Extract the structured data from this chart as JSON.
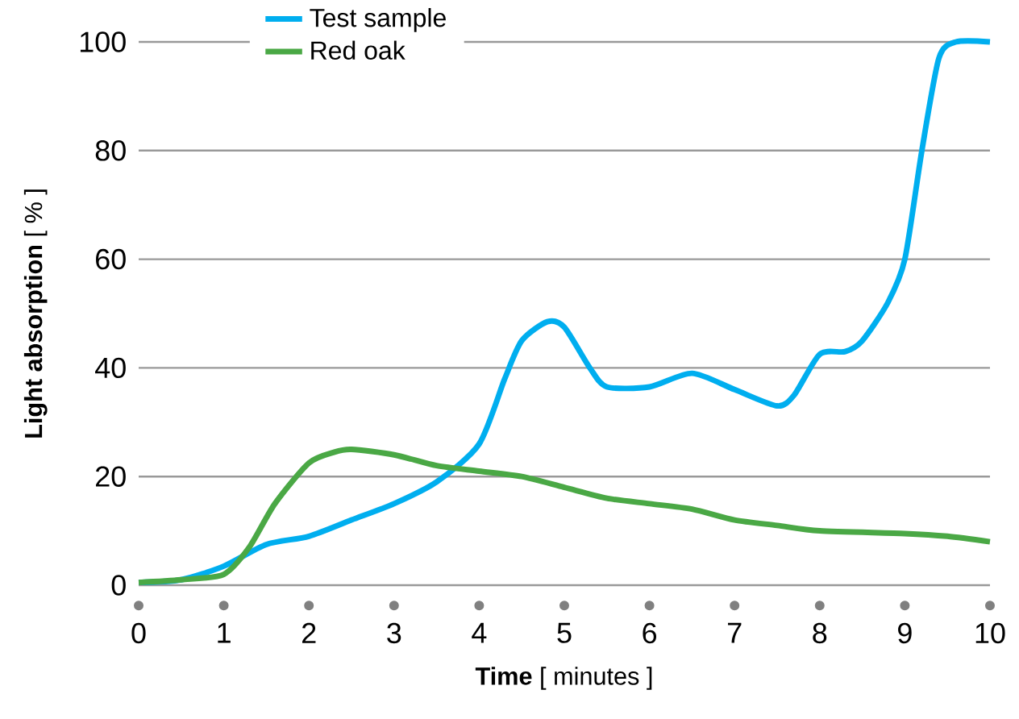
{
  "chart_data": {
    "type": "line",
    "xlabel": "**Time** [ minutes ]",
    "ylabel": "**Light absorption** [ % ]",
    "xlim": [
      0,
      10
    ],
    "ylim": [
      0,
      100
    ],
    "xticks": [
      0,
      1,
      2,
      3,
      4,
      5,
      6,
      7,
      8,
      9,
      10
    ],
    "yticks": [
      0,
      20,
      40,
      60,
      80,
      100
    ],
    "grid": "y",
    "legend": "top left",
    "marker": "none",
    "series": [
      {
        "name": "Test sample",
        "color": "#00aeef",
        "x": [
          0,
          0.5,
          1,
          1.5,
          2,
          2.5,
          3,
          3.5,
          4,
          4.3,
          4.5,
          4.8,
          5,
          5.3,
          5.5,
          6,
          6.5,
          7,
          7.5,
          7.7,
          8,
          8.3,
          8.5,
          8.8,
          9,
          9.2,
          9.4,
          9.6,
          10
        ],
        "values": [
          0.5,
          1,
          3.5,
          7.5,
          9,
          12,
          15,
          19,
          26,
          38,
          45,
          48.5,
          47.5,
          40,
          36.5,
          36.5,
          39,
          36,
          33,
          35,
          42.5,
          43,
          45,
          52,
          60,
          80,
          97,
          100,
          100
        ]
      },
      {
        "name": "Red oak",
        "color": "#4aa845",
        "x": [
          0,
          0.5,
          1,
          1.3,
          1.6,
          2,
          2.3,
          2.5,
          3,
          3.5,
          4,
          4.5,
          5,
          5.5,
          6,
          6.5,
          7,
          7.5,
          8,
          9,
          9.5,
          10
        ],
        "values": [
          0.5,
          1,
          2,
          7,
          15,
          22.5,
          24.5,
          25,
          24,
          22,
          21,
          20,
          18,
          16,
          15,
          14,
          12,
          11,
          10,
          9.5,
          9,
          8
        ]
      }
    ]
  }
}
